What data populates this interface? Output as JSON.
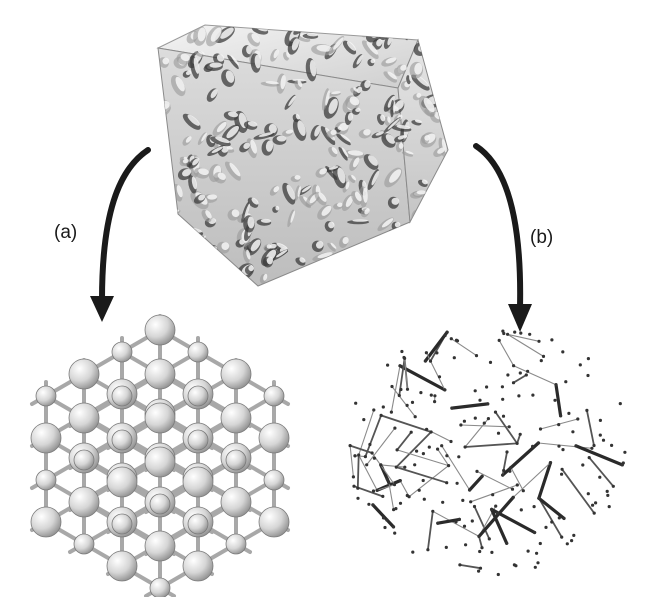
{
  "labels": {
    "a": "(a)",
    "b": "(b)"
  },
  "colors": {
    "arrow": "#1a1a1a",
    "porous_light": "#e8e8e8",
    "porous_shadow": "#4a4a4a",
    "sphere": "#c8c8c8",
    "network_line": "#555555"
  }
}
